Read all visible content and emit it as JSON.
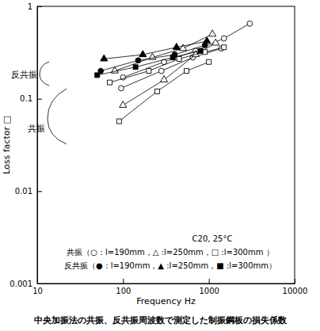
{
  "chart_data": {
    "type": "scatter",
    "title": "中央加振法の共振、反共振周波数で測定した制振鋼板の損失係数",
    "x_label": "Frequency  Hz",
    "y_label": "Loss factor  □",
    "log": true,
    "xlim": [
      10,
      10000
    ],
    "ylim": [
      0.001,
      1
    ],
    "xticks": [
      10,
      100,
      1000,
      10000
    ],
    "yticks": [
      0.001,
      0.01,
      0.1,
      1
    ],
    "annotations": [
      "反共振",
      "共振",
      "C20, 25°C",
      "共振（○：l=190mm，△ :l=250mm，□ :l=300mm ）",
      "反共振（●：l=190mm，▲ :l=250mm，■ :l=300mm）"
    ],
    "series": [
      {
        "marker": "circle_open",
        "color": "#000000",
        "line_style": "solid",
        "x": [
          100,
          300,
          700,
          1500,
          3000
        ],
        "values": [
          0.17,
          0.25,
          0.33,
          0.45,
          0.65
        ]
      },
      {
        "marker": "circle_open",
        "color": "#000000",
        "line_style": "solid",
        "x": [
          95,
          280,
          650,
          1400
        ],
        "values": [
          0.13,
          0.2,
          0.28,
          0.35
        ]
      },
      {
        "marker": "triangle_open",
        "color": "#000000",
        "line_style": "solid",
        "x": [
          100,
          300,
          700,
          1200
        ],
        "values": [
          0.085,
          0.16,
          0.3,
          0.4
        ]
      },
      {
        "marker": "triangle_open",
        "color": "#000000",
        "line_style": "solid",
        "x": [
          80,
          220,
          500,
          1100
        ],
        "values": [
          0.2,
          0.28,
          0.35,
          0.5
        ]
      },
      {
        "marker": "square_open",
        "color": "#000000",
        "line_style": "solid",
        "x": [
          90,
          250,
          550,
          1000
        ],
        "values": [
          0.057,
          0.12,
          0.2,
          0.25
        ]
      },
      {
        "marker": "square_open",
        "color": "#000000",
        "line_style": "solid",
        "x": [
          70,
          200,
          450,
          900,
          1500
        ],
        "values": [
          0.15,
          0.2,
          0.27,
          0.32,
          0.36
        ]
      },
      {
        "marker": "circle",
        "color": "#000000",
        "line_style": "solid",
        "x": [
          55,
          150,
          400,
          900
        ],
        "values": [
          0.2,
          0.26,
          0.3,
          0.38
        ]
      },
      {
        "marker": "triangle",
        "color": "#000000",
        "line_style": "solid",
        "x": [
          60,
          170,
          420,
          950
        ],
        "values": [
          0.27,
          0.3,
          0.36,
          0.42
        ]
      },
      {
        "marker": "square",
        "color": "#000000",
        "line_style": "solid",
        "x": [
          50,
          140,
          380,
          800
        ],
        "values": [
          0.18,
          0.22,
          0.28,
          0.33
        ]
      }
    ]
  }
}
